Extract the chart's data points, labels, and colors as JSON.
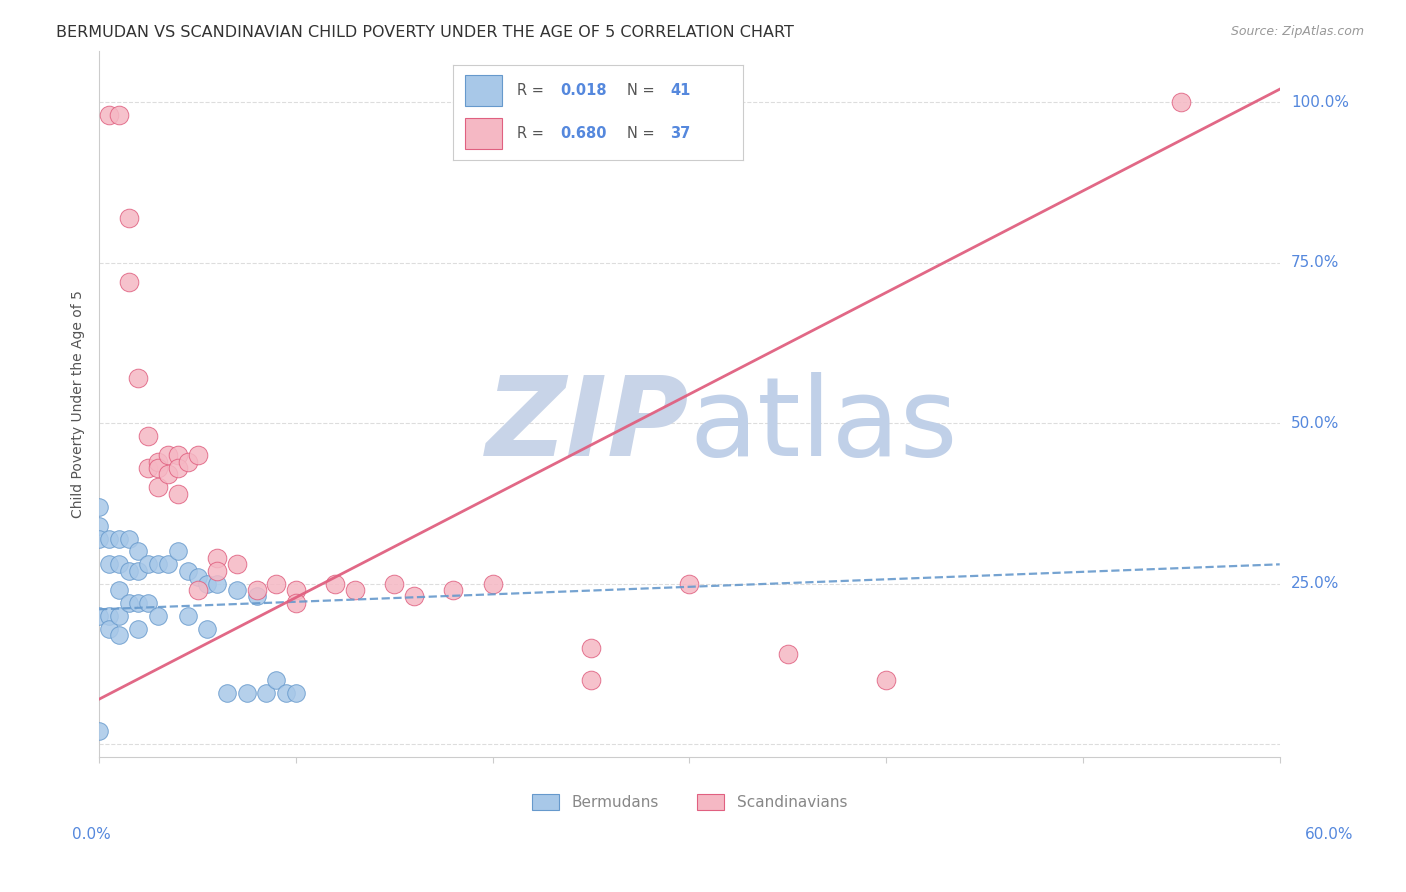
{
  "title": "BERMUDAN VS SCANDINAVIAN CHILD POVERTY UNDER THE AGE OF 5 CORRELATION CHART",
  "source": "Source: ZipAtlas.com",
  "ylabel": "Child Poverty Under the Age of 5",
  "xlim": [
    0.0,
    0.6
  ],
  "ylim": [
    -0.02,
    1.08
  ],
  "yticks": [
    0.0,
    0.25,
    0.5,
    0.75,
    1.0
  ],
  "ytick_labels": [
    "",
    "25.0%",
    "50.0%",
    "75.0%",
    "100.0%"
  ],
  "xtick_left_label": "0.0%",
  "xtick_right_label": "60.0%",
  "legend_blue_r": "0.018",
  "legend_blue_n": "41",
  "legend_pink_r": "0.680",
  "legend_pink_n": "37",
  "legend_label_blue": "Bermudans",
  "legend_label_pink": "Scandinavians",
  "blue_scatter_x": [
    0.0,
    0.0,
    0.0,
    0.0,
    0.0,
    0.005,
    0.005,
    0.005,
    0.005,
    0.01,
    0.01,
    0.01,
    0.01,
    0.01,
    0.015,
    0.015,
    0.015,
    0.02,
    0.02,
    0.02,
    0.02,
    0.025,
    0.025,
    0.03,
    0.03,
    0.035,
    0.04,
    0.045,
    0.045,
    0.05,
    0.055,
    0.055,
    0.06,
    0.065,
    0.07,
    0.075,
    0.08,
    0.085,
    0.09,
    0.095,
    0.1
  ],
  "blue_scatter_y": [
    0.37,
    0.34,
    0.32,
    0.2,
    0.02,
    0.32,
    0.28,
    0.2,
    0.18,
    0.32,
    0.28,
    0.24,
    0.2,
    0.17,
    0.32,
    0.27,
    0.22,
    0.3,
    0.27,
    0.22,
    0.18,
    0.28,
    0.22,
    0.28,
    0.2,
    0.28,
    0.3,
    0.27,
    0.2,
    0.26,
    0.25,
    0.18,
    0.25,
    0.08,
    0.24,
    0.08,
    0.23,
    0.08,
    0.1,
    0.08,
    0.08
  ],
  "pink_scatter_x": [
    0.005,
    0.01,
    0.015,
    0.015,
    0.02,
    0.025,
    0.025,
    0.03,
    0.03,
    0.03,
    0.035,
    0.035,
    0.04,
    0.04,
    0.04,
    0.045,
    0.05,
    0.05,
    0.06,
    0.06,
    0.07,
    0.08,
    0.09,
    0.1,
    0.1,
    0.12,
    0.13,
    0.15,
    0.16,
    0.18,
    0.2,
    0.25,
    0.25,
    0.3,
    0.35,
    0.4,
    0.55
  ],
  "pink_scatter_y": [
    0.98,
    0.98,
    0.82,
    0.72,
    0.57,
    0.48,
    0.43,
    0.44,
    0.43,
    0.4,
    0.45,
    0.42,
    0.45,
    0.43,
    0.39,
    0.44,
    0.45,
    0.24,
    0.29,
    0.27,
    0.28,
    0.24,
    0.25,
    0.24,
    0.22,
    0.25,
    0.24,
    0.25,
    0.23,
    0.24,
    0.25,
    0.15,
    0.1,
    0.25,
    0.14,
    0.1,
    1.0
  ],
  "blue_trend_x": [
    0.0,
    0.6
  ],
  "blue_trend_y": [
    0.21,
    0.28
  ],
  "pink_trend_x": [
    0.0,
    0.6
  ],
  "pink_trend_y": [
    0.07,
    1.02
  ],
  "blue_color": "#a8c8e8",
  "blue_edge_color": "#6699cc",
  "pink_color": "#f5b8c4",
  "pink_edge_color": "#e06080",
  "blue_trend_color": "#6699cc",
  "pink_trend_color": "#e06080",
  "grid_color": "#dddddd",
  "axis_color": "#cccccc",
  "ytick_color": "#5588dd",
  "xtick_color": "#5588dd",
  "title_color": "#333333",
  "source_color": "#999999",
  "ylabel_color": "#555555",
  "legend_text_color": "#555555",
  "legend_r_color": "#5588dd",
  "watermark_zip_color": "#c8d4e8",
  "watermark_atlas_color": "#c0d0e8",
  "background_color": "#ffffff"
}
